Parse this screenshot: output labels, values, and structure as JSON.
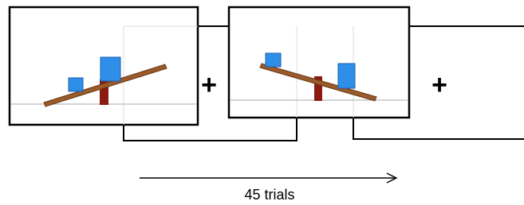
{
  "fixations": [
    "+",
    "+"
  ],
  "arrow": {
    "label": "45 trials"
  }
}
